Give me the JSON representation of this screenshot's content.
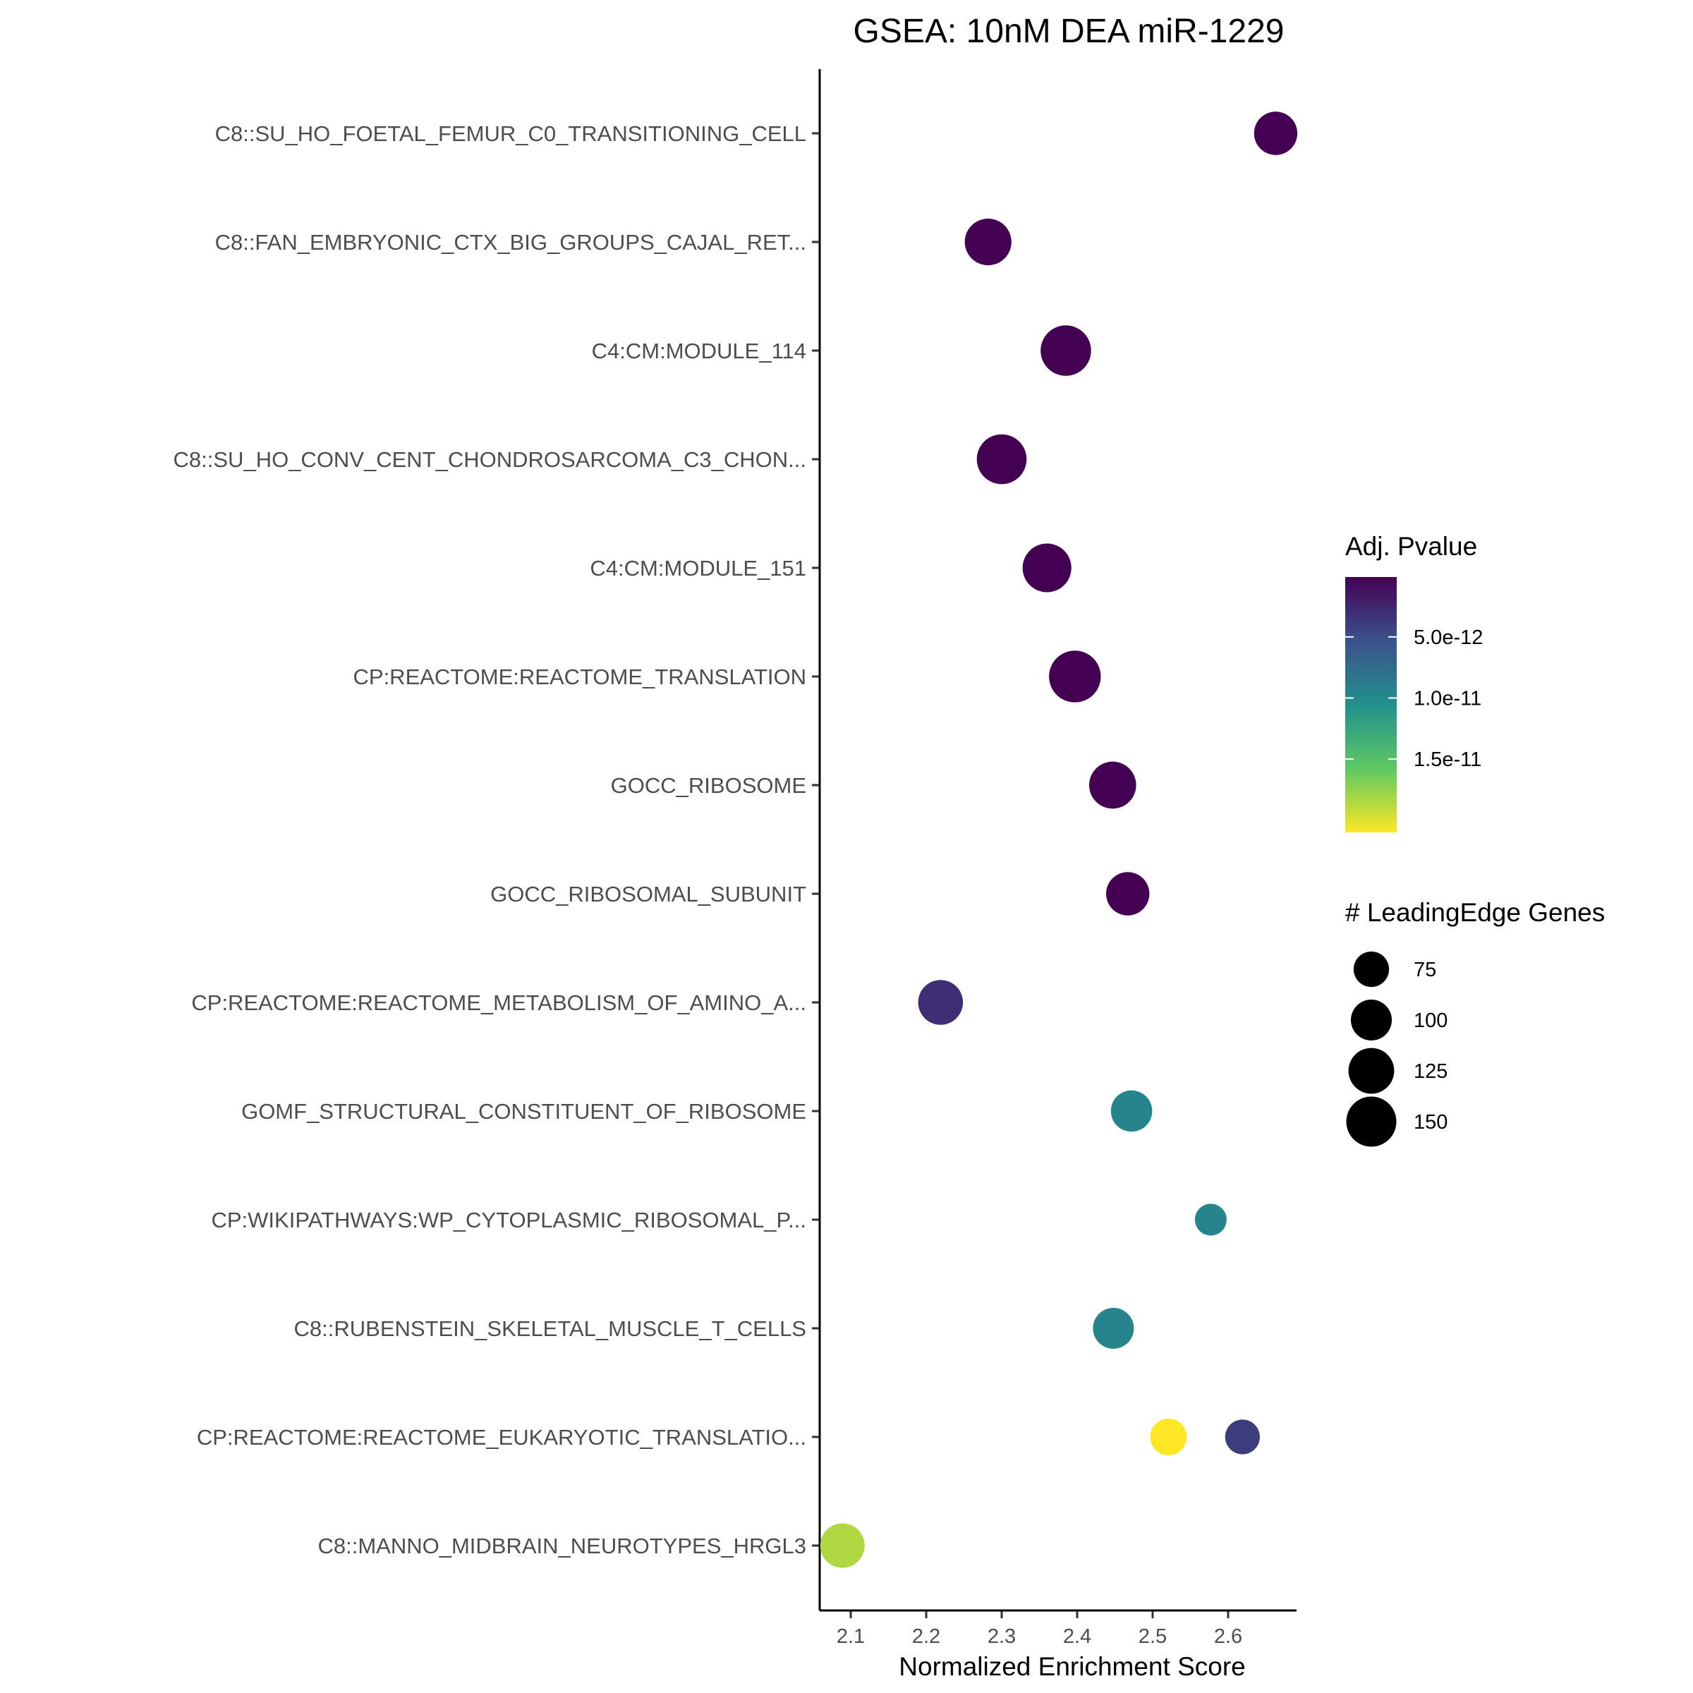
{
  "chart_data": {
    "type": "scatter",
    "title": "GSEA: 10nM DEA miR-1229",
    "xlabel": "Normalized Enrichment Score",
    "ylabel": "",
    "xlim": [
      2.06,
      2.695
    ],
    "x_ticks": [
      "2.1",
      "2.2",
      "2.3",
      "2.4",
      "2.5",
      "2.6"
    ],
    "categories": [
      "C8::SU_HO_FOETAL_FEMUR_C0_TRANSITIONING_CELL",
      "C8::FAN_EMBRYONIC_CTX_BIG_GROUPS_CAJAL_RET...",
      "C4:CM:MODULE_114",
      "C8::SU_HO_CONV_CENT_CHONDROSARCOMA_C3_CHON...",
      "C4:CM:MODULE_151",
      "CP:REACTOME:REACTOME_TRANSLATION",
      "GOCC_RIBOSOME",
      "GOCC_RIBOSOMAL_SUBUNIT",
      "CP:REACTOME:REACTOME_METABOLISM_OF_AMINO_A...",
      "GOMF_STRUCTURAL_CONSTITUENT_OF_RIBOSOME",
      "CP:WIKIPATHWAYS:WP_CYTOPLASMIC_RIBOSOMAL_P...",
      "C8::RUBENSTEIN_SKELETAL_MUSCLE_T_CELLS",
      "CP:REACTOME:REACTOME_EUKARYOTIC_TRANSLATIO...",
      "C8::MANNO_MIDBRAIN_NEUROTYPES_HRGL3"
    ],
    "points": [
      {
        "category": "C8::SU_HO_FOETAL_FEMUR_C0_TRANSITIONING_CELL",
        "nes": 2.663,
        "padj": 1e-13,
        "genes": 112
      },
      {
        "category": "C8::FAN_EMBRYONIC_CTX_BIG_GROUPS_CAJAL_RET...",
        "nes": 2.282,
        "padj": 1e-13,
        "genes": 130
      },
      {
        "category": "C4:CM:MODULE_114",
        "nes": 2.385,
        "padj": 1e-13,
        "genes": 152
      },
      {
        "category": "C8::SU_HO_CONV_CENT_CHONDROSARCOMA_C3_CHON...",
        "nes": 2.3,
        "padj": 1e-13,
        "genes": 148
      },
      {
        "category": "C4:CM:MODULE_151",
        "nes": 2.36,
        "padj": 1e-13,
        "genes": 142
      },
      {
        "category": "CP:REACTOME:REACTOME_TRANSLATION",
        "nes": 2.397,
        "padj": 1e-13,
        "genes": 160
      },
      {
        "category": "GOCC_RIBOSOME",
        "nes": 2.447,
        "padj": 1e-13,
        "genes": 132
      },
      {
        "category": "GOCC_RIBOSOMAL_SUBUNIT",
        "nes": 2.467,
        "padj": 1e-13,
        "genes": 112
      },
      {
        "category": "CP:REACTOME:REACTOME_METABOLISM_OF_AMINO_A...",
        "nes": 2.219,
        "padj": 3e-12,
        "genes": 120
      },
      {
        "category": "GOMF_STRUCTURAL_CONSTITUENT_OF_RIBOSOME",
        "nes": 2.472,
        "padj": 9.5e-12,
        "genes": 102
      },
      {
        "category": "CP:WIKIPATHWAYS:WP_CYTOPLASMIC_RIBOSOMAL_P...",
        "nes": 2.577,
        "padj": 9.5e-12,
        "genes": 60
      },
      {
        "category": "C8::RUBENSTEIN_SKELETAL_MUSCLE_T_CELLS",
        "nes": 2.448,
        "padj": 9.5e-12,
        "genes": 100
      },
      {
        "category": "CP:REACTOME:REACTOME_EUKARYOTIC_TRANSLATIO...",
        "nes": 2.521,
        "padj": 2.1e-11,
        "genes": 80
      },
      {
        "category": "CP:REACTOME:REACTOME_EUKARYOTIC_TRANSLATIO...",
        "nes": 2.619,
        "padj": 4e-12,
        "genes": 72
      },
      {
        "category": "C8::MANNO_MIDBRAIN_NEUROTYPES_HRGL3",
        "nes": 2.089,
        "padj": 1.85e-11,
        "genes": 118
      }
    ],
    "color_legend": {
      "title": "Adj. Pvalue",
      "range": [
        1e-13,
        2.1e-11
      ],
      "ticks": [
        {
          "value": 5e-12,
          "label": "5.0e-12"
        },
        {
          "value": 1e-11,
          "label": "1.0e-11"
        },
        {
          "value": 1.5e-11,
          "label": "1.5e-11"
        }
      ],
      "palette": [
        "#440154",
        "#3b528b",
        "#21908c",
        "#5dc863",
        "#fde725"
      ]
    },
    "size_legend": {
      "title": "# LeadingEdge Genes",
      "entries": [
        {
          "value": 75,
          "label": "75"
        },
        {
          "value": 100,
          "label": "100"
        },
        {
          "value": 125,
          "label": "125"
        },
        {
          "value": 150,
          "label": "150"
        }
      ]
    },
    "grid": false,
    "legend_position": "right"
  }
}
